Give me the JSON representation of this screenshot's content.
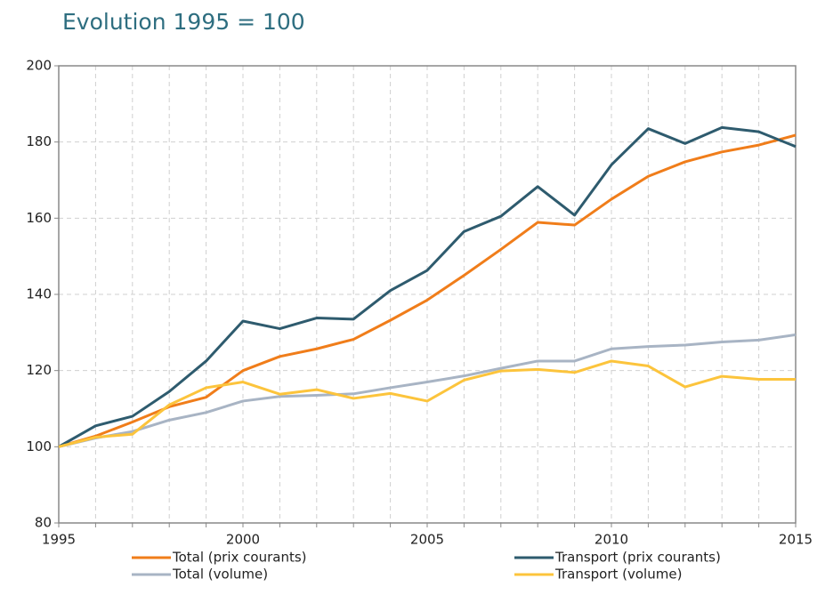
{
  "chart_data": {
    "type": "line",
    "title": "Evolution 1995 = 100",
    "x": [
      1995,
      1996,
      1997,
      1998,
      1999,
      2000,
      2001,
      2002,
      2003,
      2004,
      2005,
      2006,
      2007,
      2008,
      2009,
      2010,
      2011,
      2012,
      2013,
      2014,
      2015
    ],
    "series": [
      {
        "name": "Total (prix courants)",
        "color": "#f07d1a",
        "values": [
          100,
          102.8,
          106.5,
          110.5,
          113,
          120,
          123.7,
          125.7,
          128.2,
          133.2,
          138.5,
          145,
          151.8,
          158.9,
          158.2,
          165,
          171,
          174.8,
          177.4,
          179.2,
          181.8
        ]
      },
      {
        "name": "Transport (prix courants)",
        "color": "#2e5b6e",
        "values": [
          100,
          105.5,
          108,
          114.5,
          122.5,
          133,
          131,
          133.8,
          133.5,
          141,
          146.3,
          156.5,
          160.5,
          168.3,
          160.8,
          174,
          183.5,
          179.6,
          183.8,
          182.7,
          178.8
        ]
      },
      {
        "name": "Total (volume)",
        "color": "#a8b4c4",
        "values": [
          100,
          102.3,
          104,
          107,
          109,
          112,
          113.2,
          113.5,
          113.9,
          115.5,
          117,
          118.6,
          120.6,
          122.5,
          122.5,
          125.7,
          126.3,
          126.7,
          127.5,
          128,
          129.4
        ]
      },
      {
        "name": "Transport (volume)",
        "color": "#fcc43c",
        "values": [
          100,
          102.5,
          103.3,
          111,
          115.5,
          117,
          113.8,
          115,
          112.7,
          114,
          112,
          117.5,
          119.9,
          120.3,
          119.5,
          122.5,
          121.2,
          115.7,
          118.5,
          117.7,
          117.7
        ]
      }
    ],
    "xlim": [
      1995,
      2015
    ],
    "xticks": [
      1995,
      2000,
      2005,
      2010,
      2015
    ],
    "ylim": [
      80,
      200
    ],
    "yticks": [
      80,
      100,
      120,
      140,
      160,
      180,
      200
    ],
    "grid": true
  }
}
